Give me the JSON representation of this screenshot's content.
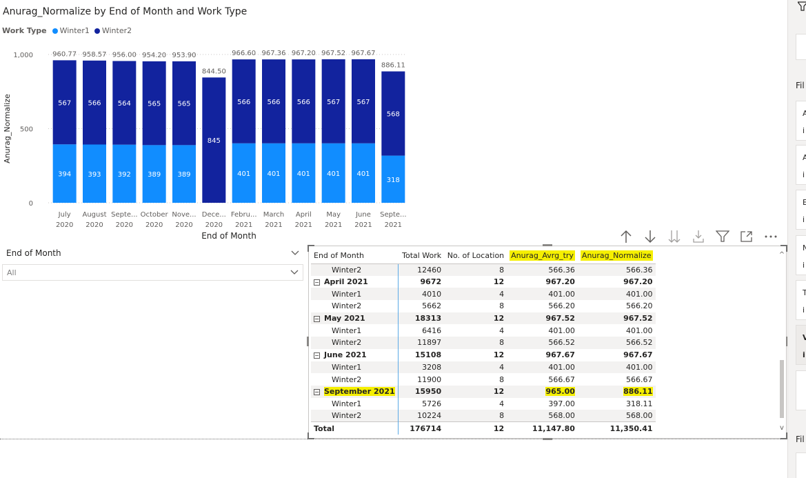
{
  "title": "Anurag_Normalize by End of Month and Work Type",
  "legend": {
    "title": "Work Type",
    "items": [
      {
        "label": "Winter1",
        "color": "#118DFF"
      },
      {
        "label": "Winter2",
        "color": "#12239E"
      }
    ]
  },
  "chart_data": {
    "type": "bar",
    "stacked": true,
    "title": "Anurag_Normalize by End of Month and Work Type",
    "xlabel": "End of Month",
    "ylabel": "Anurag_Normalize",
    "ylim": [
      0,
      1000
    ],
    "yticks": [
      "0",
      "500",
      "1,000"
    ],
    "grid": true,
    "categories": [
      [
        "July",
        "2020"
      ],
      [
        "August",
        "2020"
      ],
      [
        "Septe...",
        "2020"
      ],
      [
        "October",
        "2020"
      ],
      [
        "Nove...",
        "2020"
      ],
      [
        "Dece...",
        "2020"
      ],
      [
        "Febru...",
        "2021"
      ],
      [
        "March",
        "2021"
      ],
      [
        "April",
        "2021"
      ],
      [
        "May",
        "2021"
      ],
      [
        "June",
        "2021"
      ],
      [
        "Septe...",
        "2021"
      ]
    ],
    "series": [
      {
        "name": "Winter1",
        "color": "#118DFF",
        "values": [
          394,
          393,
          392,
          389,
          389,
          0,
          401,
          401,
          401,
          401,
          401,
          318
        ]
      },
      {
        "name": "Winter2",
        "color": "#12239E",
        "values": [
          567,
          566,
          564,
          565,
          565,
          845,
          566,
          566,
          566,
          567,
          567,
          568
        ]
      }
    ],
    "segment_labels": [
      [
        "394",
        "393",
        "392",
        "389",
        "389",
        "",
        "401",
        "401",
        "401",
        "401",
        "401",
        "318"
      ],
      [
        "567",
        "566",
        "564",
        "565",
        "565",
        "845",
        "566",
        "566",
        "566",
        "567",
        "567",
        "568"
      ]
    ],
    "totals": [
      960.77,
      958.57,
      956.0,
      954.2,
      953.9,
      844.5,
      966.6,
      967.36,
      967.2,
      967.52,
      967.67,
      886.11
    ],
    "total_labels": [
      "960.77",
      "958.57",
      "956.00",
      "954.20",
      "953.90",
      "844.50",
      "966.60",
      "967.36",
      "967.20",
      "967.52",
      "967.67",
      "886.11"
    ]
  },
  "toolbar": {
    "icons": [
      "arrow-up-icon",
      "arrow-down-icon",
      "expand-all-icon",
      "drill-down-icon",
      "filter-icon",
      "focus-mode-icon",
      "more-options-icon"
    ]
  },
  "slicer": {
    "title": "End of Month",
    "value": "All"
  },
  "matrix": {
    "columns": [
      "End of Month",
      "Total Work",
      "No. of Location",
      "Anurag_Avrg_try",
      "Anurag_Normalize"
    ],
    "rows": [
      {
        "type": "child",
        "cells": [
          "Winter2",
          "12460",
          "8",
          "566.36",
          "566.36"
        ]
      },
      {
        "type": "parent",
        "cells": [
          "April 2021",
          "9672",
          "12",
          "967.20",
          "967.20"
        ]
      },
      {
        "type": "child",
        "cells": [
          "Winter1",
          "4010",
          "4",
          "401.00",
          "401.00"
        ]
      },
      {
        "type": "child",
        "cells": [
          "Winter2",
          "5662",
          "8",
          "566.20",
          "566.20"
        ]
      },
      {
        "type": "parent",
        "cells": [
          "May 2021",
          "18313",
          "12",
          "967.52",
          "967.52"
        ]
      },
      {
        "type": "child",
        "cells": [
          "Winter1",
          "6416",
          "4",
          "401.00",
          "401.00"
        ]
      },
      {
        "type": "child",
        "cells": [
          "Winter2",
          "11897",
          "8",
          "566.52",
          "566.52"
        ]
      },
      {
        "type": "parent",
        "cells": [
          "June 2021",
          "15108",
          "12",
          "967.67",
          "967.67"
        ]
      },
      {
        "type": "child",
        "cells": [
          "Winter1",
          "3208",
          "4",
          "401.00",
          "401.00"
        ]
      },
      {
        "type": "child",
        "cells": [
          "Winter2",
          "11900",
          "8",
          "566.67",
          "566.67"
        ]
      },
      {
        "type": "parent",
        "cells": [
          "September 2021",
          "15950",
          "12",
          "965.00",
          "886.11"
        ]
      },
      {
        "type": "child",
        "cells": [
          "Winter1",
          "5726",
          "4",
          "397.00",
          "318.11"
        ]
      },
      {
        "type": "child",
        "cells": [
          "Winter2",
          "10224",
          "8",
          "568.00",
          "568.00"
        ]
      },
      {
        "type": "total",
        "cells": [
          "Total",
          "176714",
          "12",
          "11,147.80",
          "11,350.41"
        ]
      }
    ],
    "highlight_color": "#F5EF00"
  },
  "side_pane": {
    "labels": [
      "Fil",
      "Fil"
    ],
    "cards": [
      "A\ni",
      "A\ni",
      "E\ni",
      "N\ni",
      "T\ni",
      "V\ni"
    ]
  }
}
